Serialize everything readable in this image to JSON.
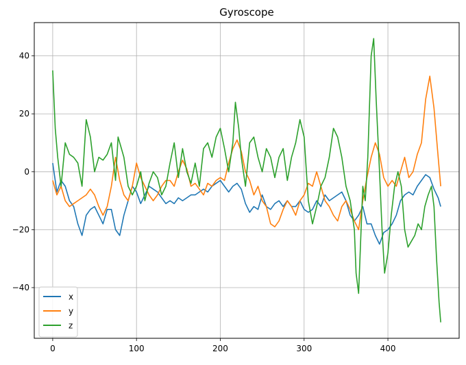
{
  "chart_data": {
    "type": "line",
    "title": "Gyroscope",
    "xlabel": "",
    "ylabel": "",
    "xlim": [
      -22,
      485
    ],
    "ylim": [
      -57.5,
      51.5
    ],
    "xticks": [
      0,
      100,
      200,
      300,
      400
    ],
    "yticks": [
      -40,
      -20,
      0,
      20,
      40
    ],
    "grid": true,
    "legend": "lower-left",
    "series": [
      {
        "name": "x",
        "color": "#1f77b4",
        "points": [
          [
            0,
            3
          ],
          [
            5,
            -7
          ],
          [
            10,
            -3
          ],
          [
            15,
            -5
          ],
          [
            20,
            -10
          ],
          [
            25,
            -12
          ],
          [
            30,
            -18
          ],
          [
            35,
            -22
          ],
          [
            40,
            -15
          ],
          [
            45,
            -13
          ],
          [
            50,
            -12
          ],
          [
            55,
            -15
          ],
          [
            60,
            -18
          ],
          [
            65,
            -13
          ],
          [
            70,
            -13
          ],
          [
            75,
            -20
          ],
          [
            80,
            -22
          ],
          [
            85,
            -15
          ],
          [
            90,
            -10
          ],
          [
            95,
            -5
          ],
          [
            100,
            -7
          ],
          [
            105,
            -11
          ],
          [
            110,
            -8
          ],
          [
            115,
            -5
          ],
          [
            120,
            -6
          ],
          [
            125,
            -7
          ],
          [
            130,
            -9
          ],
          [
            135,
            -11
          ],
          [
            140,
            -10
          ],
          [
            145,
            -11
          ],
          [
            150,
            -9
          ],
          [
            155,
            -10
          ],
          [
            160,
            -9
          ],
          [
            165,
            -8
          ],
          [
            170,
            -8
          ],
          [
            175,
            -7
          ],
          [
            180,
            -6
          ],
          [
            185,
            -7
          ],
          [
            190,
            -5
          ],
          [
            195,
            -4
          ],
          [
            200,
            -3
          ],
          [
            205,
            -5
          ],
          [
            210,
            -7
          ],
          [
            215,
            -5
          ],
          [
            220,
            -4
          ],
          [
            225,
            -6
          ],
          [
            230,
            -11
          ],
          [
            235,
            -14
          ],
          [
            240,
            -12
          ],
          [
            245,
            -13
          ],
          [
            250,
            -8
          ],
          [
            255,
            -12
          ],
          [
            260,
            -13
          ],
          [
            265,
            -11
          ],
          [
            270,
            -10
          ],
          [
            275,
            -12
          ],
          [
            280,
            -10
          ],
          [
            285,
            -12
          ],
          [
            290,
            -12
          ],
          [
            295,
            -10
          ],
          [
            300,
            -13
          ],
          [
            305,
            -14
          ],
          [
            310,
            -13
          ],
          [
            315,
            -10
          ],
          [
            320,
            -12
          ],
          [
            325,
            -8
          ],
          [
            330,
            -10
          ],
          [
            335,
            -9
          ],
          [
            340,
            -8
          ],
          [
            345,
            -7
          ],
          [
            350,
            -10
          ],
          [
            355,
            -15
          ],
          [
            360,
            -17
          ],
          [
            365,
            -15
          ],
          [
            370,
            -12
          ],
          [
            375,
            -18
          ],
          [
            380,
            -18
          ],
          [
            385,
            -22
          ],
          [
            390,
            -25
          ],
          [
            395,
            -21
          ],
          [
            400,
            -20
          ],
          [
            405,
            -18
          ],
          [
            410,
            -15
          ],
          [
            415,
            -10
          ],
          [
            420,
            -8
          ],
          [
            425,
            -7
          ],
          [
            430,
            -8
          ],
          [
            435,
            -5
          ],
          [
            440,
            -3
          ],
          [
            445,
            -1
          ],
          [
            450,
            -2
          ],
          [
            455,
            -6
          ],
          [
            460,
            -9
          ],
          [
            463,
            -12
          ]
        ]
      },
      {
        "name": "y",
        "color": "#ff7f0e",
        "points": [
          [
            0,
            -3
          ],
          [
            5,
            -8
          ],
          [
            10,
            -5
          ],
          [
            15,
            -10
          ],
          [
            20,
            -12
          ],
          [
            25,
            -11
          ],
          [
            30,
            -10
          ],
          [
            35,
            -9
          ],
          [
            40,
            -8
          ],
          [
            45,
            -6
          ],
          [
            50,
            -8
          ],
          [
            55,
            -12
          ],
          [
            60,
            -15
          ],
          [
            65,
            -12
          ],
          [
            70,
            -5
          ],
          [
            75,
            5
          ],
          [
            80,
            -3
          ],
          [
            85,
            -8
          ],
          [
            90,
            -10
          ],
          [
            95,
            -5
          ],
          [
            100,
            3
          ],
          [
            105,
            -2
          ],
          [
            110,
            -5
          ],
          [
            115,
            -8
          ],
          [
            120,
            -10
          ],
          [
            125,
            -8
          ],
          [
            130,
            -5
          ],
          [
            135,
            -3
          ],
          [
            140,
            -3
          ],
          [
            145,
            -5
          ],
          [
            150,
            0
          ],
          [
            155,
            4
          ],
          [
            160,
            1
          ],
          [
            165,
            -5
          ],
          [
            170,
            -4
          ],
          [
            175,
            -6
          ],
          [
            180,
            -8
          ],
          [
            185,
            -4
          ],
          [
            190,
            -5
          ],
          [
            195,
            -3
          ],
          [
            200,
            -2
          ],
          [
            205,
            -3
          ],
          [
            210,
            3
          ],
          [
            215,
            8
          ],
          [
            220,
            11
          ],
          [
            225,
            7
          ],
          [
            230,
            0
          ],
          [
            235,
            -3
          ],
          [
            240,
            -8
          ],
          [
            245,
            -5
          ],
          [
            250,
            -10
          ],
          [
            255,
            -12
          ],
          [
            260,
            -18
          ],
          [
            265,
            -19
          ],
          [
            270,
            -17
          ],
          [
            275,
            -13
          ],
          [
            280,
            -10
          ],
          [
            285,
            -12
          ],
          [
            290,
            -15
          ],
          [
            295,
            -10
          ],
          [
            300,
            -8
          ],
          [
            305,
            -4
          ],
          [
            310,
            -5
          ],
          [
            315,
            0
          ],
          [
            320,
            -5
          ],
          [
            325,
            -10
          ],
          [
            330,
            -12
          ],
          [
            335,
            -15
          ],
          [
            340,
            -17
          ],
          [
            345,
            -12
          ],
          [
            350,
            -10
          ],
          [
            355,
            -13
          ],
          [
            360,
            -17
          ],
          [
            365,
            -20
          ],
          [
            370,
            -10
          ],
          [
            375,
            -2
          ],
          [
            380,
            5
          ],
          [
            385,
            10
          ],
          [
            390,
            6
          ],
          [
            395,
            -2
          ],
          [
            400,
            -5
          ],
          [
            405,
            -3
          ],
          [
            410,
            -5
          ],
          [
            415,
            0
          ],
          [
            420,
            5
          ],
          [
            425,
            -2
          ],
          [
            430,
            0
          ],
          [
            435,
            6
          ],
          [
            440,
            10
          ],
          [
            445,
            25
          ],
          [
            450,
            33
          ],
          [
            455,
            22
          ],
          [
            460,
            5
          ],
          [
            463,
            -5
          ]
        ]
      },
      {
        "name": "z",
        "color": "#2ca02c",
        "points": [
          [
            0,
            35
          ],
          [
            3,
            15
          ],
          [
            6,
            5
          ],
          [
            10,
            -5
          ],
          [
            15,
            10
          ],
          [
            20,
            6
          ],
          [
            25,
            5
          ],
          [
            30,
            3
          ],
          [
            35,
            -5
          ],
          [
            40,
            18
          ],
          [
            45,
            12
          ],
          [
            50,
            0
          ],
          [
            55,
            5
          ],
          [
            60,
            4
          ],
          [
            65,
            6
          ],
          [
            70,
            10
          ],
          [
            75,
            -3
          ],
          [
            78,
            12
          ],
          [
            82,
            8
          ],
          [
            85,
            5
          ],
          [
            90,
            -5
          ],
          [
            95,
            -8
          ],
          [
            100,
            -5
          ],
          [
            105,
            0
          ],
          [
            110,
            -10
          ],
          [
            115,
            -4
          ],
          [
            120,
            0
          ],
          [
            125,
            -2
          ],
          [
            130,
            -8
          ],
          [
            135,
            -5
          ],
          [
            140,
            3
          ],
          [
            145,
            10
          ],
          [
            150,
            -2
          ],
          [
            155,
            8
          ],
          [
            160,
            0
          ],
          [
            165,
            -4
          ],
          [
            170,
            3
          ],
          [
            175,
            -5
          ],
          [
            180,
            8
          ],
          [
            185,
            10
          ],
          [
            190,
            5
          ],
          [
            195,
            12
          ],
          [
            200,
            15
          ],
          [
            205,
            8
          ],
          [
            210,
            0
          ],
          [
            215,
            10
          ],
          [
            218,
            24
          ],
          [
            222,
            15
          ],
          [
            225,
            5
          ],
          [
            230,
            -5
          ],
          [
            235,
            10
          ],
          [
            240,
            12
          ],
          [
            245,
            5
          ],
          [
            250,
            0
          ],
          [
            255,
            8
          ],
          [
            260,
            5
          ],
          [
            265,
            -2
          ],
          [
            270,
            5
          ],
          [
            275,
            8
          ],
          [
            280,
            -3
          ],
          [
            285,
            5
          ],
          [
            290,
            10
          ],
          [
            295,
            18
          ],
          [
            300,
            12
          ],
          [
            305,
            -10
          ],
          [
            310,
            -18
          ],
          [
            315,
            -12
          ],
          [
            320,
            -5
          ],
          [
            325,
            -2
          ],
          [
            330,
            5
          ],
          [
            335,
            15
          ],
          [
            340,
            12
          ],
          [
            345,
            5
          ],
          [
            350,
            -5
          ],
          [
            355,
            -10
          ],
          [
            360,
            -20
          ],
          [
            362,
            -35
          ],
          [
            365,
            -42
          ],
          [
            368,
            -20
          ],
          [
            370,
            -5
          ],
          [
            373,
            -10
          ],
          [
            376,
            5
          ],
          [
            380,
            40
          ],
          [
            383,
            46
          ],
          [
            386,
            25
          ],
          [
            390,
            0
          ],
          [
            393,
            -20
          ],
          [
            396,
            -35
          ],
          [
            400,
            -28
          ],
          [
            404,
            -15
          ],
          [
            408,
            -5
          ],
          [
            412,
            0
          ],
          [
            416,
            -5
          ],
          [
            420,
            -20
          ],
          [
            424,
            -26
          ],
          [
            428,
            -24
          ],
          [
            432,
            -22
          ],
          [
            436,
            -18
          ],
          [
            440,
            -20
          ],
          [
            444,
            -12
          ],
          [
            448,
            -8
          ],
          [
            452,
            -5
          ],
          [
            455,
            -12
          ],
          [
            458,
            -30
          ],
          [
            461,
            -45
          ],
          [
            463,
            -52
          ]
        ]
      }
    ]
  }
}
